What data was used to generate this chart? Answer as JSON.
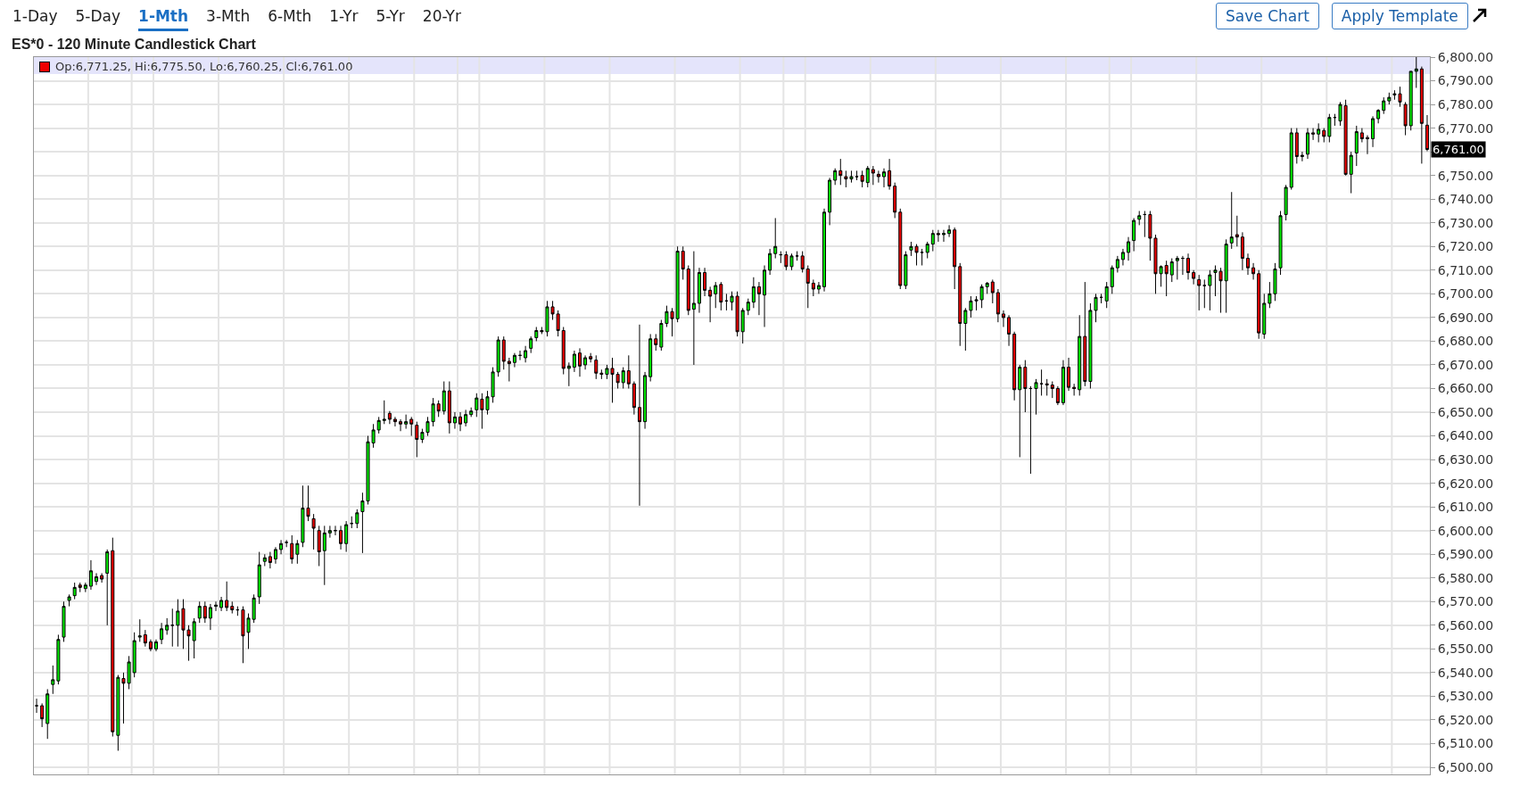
{
  "chart_data": {
    "type": "candlestick",
    "title": "ES*0 - 120 Minute Candlestick Chart",
    "annotations": [
      "1-Day",
      "5-Day",
      "1-Mth",
      "3-Mth",
      "6-Mth",
      "1-Yr",
      "5-Yr",
      "20-Yr",
      "Save Chart",
      "Apply Template",
      "Op:6,771.25, Hi:6,775.50, Lo:6,760.25, Cl:6,761.00",
      "6,761.00"
    ],
    "grid": "y",
    "legend": false,
    "tick_labels": "y",
    "ylim": [
      6497,
      6800
    ],
    "yticks": [
      {
        "value": 6500,
        "label": "6,500.00"
      },
      {
        "value": 6510,
        "label": "6,510.00"
      },
      {
        "value": 6520,
        "label": "6,520.00"
      },
      {
        "value": 6530,
        "label": "6,530.00"
      },
      {
        "value": 6540,
        "label": "6,540.00"
      },
      {
        "value": 6550,
        "label": "6,550.00"
      },
      {
        "value": 6560,
        "label": "6,560.00"
      },
      {
        "value": 6570,
        "label": "6,570.00"
      },
      {
        "value": 6580,
        "label": "6,580.00"
      },
      {
        "value": 6590,
        "label": "6,590.00"
      },
      {
        "value": 6600,
        "label": "6,600.00"
      },
      {
        "value": 6610,
        "label": "6,610.00"
      },
      {
        "value": 6620,
        "label": "6,620.00"
      },
      {
        "value": 6630,
        "label": "6,630.00"
      },
      {
        "value": 6640,
        "label": "6,640.00"
      },
      {
        "value": 6650,
        "label": "6,650.00"
      },
      {
        "value": 6660,
        "label": "6,660.00"
      },
      {
        "value": 6670,
        "label": "6,670.00"
      },
      {
        "value": 6680,
        "label": "6,680.00"
      },
      {
        "value": 6690,
        "label": "6,690.00"
      },
      {
        "value": 6700,
        "label": "6,700.00"
      },
      {
        "value": 6710,
        "label": "6,710.00"
      },
      {
        "value": 6720,
        "label": "6,720.00"
      },
      {
        "value": 6730,
        "label": "6,730.00"
      },
      {
        "value": 6740,
        "label": "6,740.00"
      },
      {
        "value": 6750,
        "label": "6,750.00"
      },
      {
        "value": 6760,
        "label": null
      },
      {
        "value": 6770,
        "label": "6,770.00"
      },
      {
        "value": 6780,
        "label": "6,780.00"
      },
      {
        "value": 6790,
        "label": "6,790.00"
      },
      {
        "value": 6800,
        "label": "6,800.00"
      }
    ],
    "categories": [
      null,
      null,
      null,
      null,
      null,
      null,
      null,
      null,
      null,
      null,
      null,
      null,
      null,
      null,
      null,
      null,
      null,
      null,
      null,
      null,
      null,
      null,
      null,
      null,
      null,
      null,
      null,
      null,
      null,
      null,
      null,
      null,
      null,
      null,
      null,
      null,
      null,
      null,
      null,
      null,
      null,
      null,
      null,
      null,
      null,
      null,
      null,
      null,
      null,
      null,
      null,
      null,
      null,
      null,
      null,
      null,
      null,
      null,
      null,
      null,
      null,
      null,
      null,
      null,
      null,
      null,
      null,
      null,
      null,
      null,
      null,
      null,
      null,
      null,
      null,
      null,
      null,
      null,
      null,
      null,
      null,
      null,
      null,
      null,
      null,
      null,
      null,
      null,
      null,
      null,
      null,
      null,
      null,
      null,
      null,
      null,
      null,
      null,
      null,
      null,
      null,
      null,
      null,
      null,
      null,
      null,
      null,
      null,
      null,
      null,
      null,
      null,
      null,
      null,
      null,
      null,
      null,
      null,
      null,
      null,
      null,
      null,
      null,
      null,
      null,
      null,
      null,
      null,
      null,
      null,
      null,
      null,
      null,
      null,
      null,
      null,
      null,
      null,
      null,
      null,
      null,
      null,
      null,
      null,
      null,
      null,
      null,
      null,
      null,
      null,
      null,
      null,
      null,
      null,
      null,
      null,
      null,
      null,
      null,
      null,
      null,
      null,
      null,
      null,
      null,
      null,
      null,
      null,
      null,
      null,
      null,
      null,
      null,
      null,
      null,
      null,
      null,
      null,
      null,
      null,
      null,
      null,
      null,
      null,
      null,
      null,
      null,
      null,
      null,
      null,
      null,
      null,
      null,
      null,
      null,
      null,
      null,
      null,
      null,
      null,
      null,
      null,
      null,
      null,
      null,
      null,
      null,
      null,
      null,
      null,
      null,
      null,
      null,
      null,
      null,
      null,
      null,
      null,
      null,
      null,
      null,
      null,
      null,
      null,
      null,
      null,
      null,
      null,
      null,
      null,
      null,
      null,
      null,
      null,
      null,
      null,
      null,
      null,
      null,
      null,
      null,
      null,
      null,
      null,
      null,
      null,
      null,
      null,
      null,
      null,
      null,
      null,
      null,
      null,
      null,
      null,
      null
    ],
    "ohlc": [
      [
        6526,
        6529,
        6523,
        6526
      ],
      [
        6526,
        6527,
        6517,
        6520.5
      ],
      [
        6518.5,
        6533,
        6512,
        6531
      ],
      [
        6535,
        6543,
        6531,
        6537
      ],
      [
        6536.5,
        6556,
        6535,
        6554
      ],
      [
        6555,
        6570,
        6553,
        6568
      ],
      [
        6570.5,
        6573,
        6568,
        6572
      ],
      [
        6572.5,
        6578,
        6571,
        6576
      ],
      [
        6577,
        6578,
        6574,
        6576
      ],
      [
        6575.5,
        6578,
        6574,
        6577
      ],
      [
        6576.5,
        6587.5,
        6575,
        6583
      ],
      [
        6578.5,
        6582,
        6577,
        6580.5
      ],
      [
        6581,
        6582,
        6578,
        6579.5
      ],
      [
        6582,
        6592,
        6560,
        6591
      ],
      [
        6591.5,
        6597,
        6513,
        6515
      ],
      [
        6513.5,
        6539,
        6507,
        6538
      ],
      [
        6537.5,
        6540,
        6518.5,
        6535.5
      ],
      [
        6535.5,
        6547,
        6533,
        6544.5
      ],
      [
        6540,
        6557,
        6538,
        6553.5
      ],
      [
        6555,
        6562.5,
        6553,
        6555.5
      ],
      [
        6556,
        6558,
        6551,
        6552.5
      ],
      [
        6553,
        6554,
        6549,
        6550
      ],
      [
        6550,
        6554,
        6549,
        6553
      ],
      [
        6554,
        6561,
        6552,
        6558.5
      ],
      [
        6558,
        6563,
        6556,
        6560
      ],
      [
        6560,
        6567,
        6551,
        6560
      ],
      [
        6560,
        6571,
        6551,
        6566
      ],
      [
        6567,
        6571,
        6550,
        6558
      ],
      [
        6558,
        6560,
        6545,
        6555.5
      ],
      [
        6553.5,
        6563,
        6546,
        6561.5
      ],
      [
        6563,
        6570,
        6561,
        6568
      ],
      [
        6568,
        6570,
        6561,
        6563
      ],
      [
        6563,
        6569,
        6558,
        6567.5
      ],
      [
        6568,
        6570,
        6566,
        6568.5
      ],
      [
        6567.5,
        6572,
        6566,
        6570.5
      ],
      [
        6570.5,
        6578.5,
        6566,
        6567.5
      ],
      [
        6568,
        6570,
        6565,
        6566.5
      ],
      [
        6566.5,
        6568,
        6564,
        6566.5
      ],
      [
        6566.5,
        6568,
        6544,
        6555.5
      ],
      [
        6557,
        6565,
        6550,
        6563
      ],
      [
        6562.5,
        6573,
        6561,
        6571.5
      ],
      [
        6572,
        6591,
        6569,
        6585.5
      ],
      [
        6587,
        6590,
        6585,
        6588.5
      ],
      [
        6589,
        6591,
        6584,
        6586.5
      ],
      [
        6588,
        6593,
        6586,
        6592
      ],
      [
        6592,
        6596,
        6590,
        6594.5
      ],
      [
        6595,
        6596,
        6593,
        6595
      ],
      [
        6594.5,
        6598,
        6586,
        6588
      ],
      [
        6590,
        6596,
        6586,
        6594.5
      ],
      [
        6595,
        6619,
        6593,
        6609.5
      ],
      [
        6609.5,
        6619,
        6604,
        6606
      ],
      [
        6605,
        6607,
        6592,
        6601
      ],
      [
        6600,
        6602,
        6585,
        6591
      ],
      [
        6591.5,
        6602,
        6577,
        6599
      ],
      [
        6599,
        6602,
        6597,
        6600
      ],
      [
        6600,
        6602,
        6598,
        6600
      ],
      [
        6600,
        6602,
        6592,
        6594.5
      ],
      [
        6594.5,
        6604,
        6591,
        6602.5
      ],
      [
        6603,
        6606,
        6601,
        6603
      ],
      [
        6603,
        6609,
        6601,
        6607.5
      ],
      [
        6608,
        6616,
        6590.5,
        6612.5
      ],
      [
        6612.5,
        6640,
        6611,
        6637.5
      ],
      [
        6637,
        6645,
        6635,
        6642.5
      ],
      [
        6642.5,
        6648,
        6641,
        6646.5
      ],
      [
        6646.5,
        6655,
        6645,
        6647
      ],
      [
        6649.5,
        6650.5,
        6645,
        6647
      ],
      [
        6647,
        6648,
        6644,
        6646
      ],
      [
        6646,
        6647,
        6642,
        6645
      ],
      [
        6645,
        6649,
        6643,
        6646
      ],
      [
        6647,
        6648,
        6640,
        6645
      ],
      [
        6644.5,
        6646,
        6631,
        6638.5
      ],
      [
        6638.5,
        6643,
        6637,
        6641.5
      ],
      [
        6641.5,
        6648,
        6640,
        6646
      ],
      [
        6646,
        6656,
        6644,
        6653.5
      ],
      [
        6653.5,
        6655,
        6648,
        6650.5
      ],
      [
        6650.5,
        6663,
        6649,
        6659
      ],
      [
        6659,
        6663,
        6641,
        6645.5
      ],
      [
        6645.5,
        6650,
        6643,
        6648
      ],
      [
        6648,
        6650,
        6642,
        6645
      ],
      [
        6645.5,
        6651,
        6644,
        6649
      ],
      [
        6649,
        6652,
        6648,
        6650.5
      ],
      [
        6651,
        6658,
        6648,
        6656
      ],
      [
        6655.5,
        6658,
        6643,
        6651
      ],
      [
        6651,
        6659,
        6649,
        6656.5
      ],
      [
        6656.5,
        6669,
        6654,
        6667
      ],
      [
        6667,
        6682,
        6665,
        6680.5
      ],
      [
        6680.5,
        6682,
        6668,
        6671.5
      ],
      [
        6671.5,
        6673,
        6663,
        6670.5
      ],
      [
        6671,
        6675,
        6669,
        6674
      ],
      [
        6674,
        6676,
        6672,
        6674
      ],
      [
        6673,
        6678,
        6671,
        6676
      ],
      [
        6677,
        6682,
        6675,
        6681
      ],
      [
        6681.5,
        6686,
        6680,
        6684.5
      ],
      [
        6684.5,
        6686,
        6683,
        6684
      ],
      [
        6684,
        6697,
        6682,
        6694.5
      ],
      [
        6694.5,
        6697,
        6689,
        6691.5
      ],
      [
        6691.5,
        6693,
        6682,
        6684.5
      ],
      [
        6684.5,
        6686,
        6666,
        6668.5
      ],
      [
        6668.5,
        6671,
        6661,
        6669.5
      ],
      [
        6669,
        6676,
        6667,
        6674.5
      ],
      [
        6675,
        6677,
        6665,
        6669.5
      ],
      [
        6670,
        6674,
        6668,
        6673
      ],
      [
        6673.5,
        6675,
        6671,
        6672.5
      ],
      [
        6672,
        6674,
        6664,
        6666.5
      ],
      [
        6666.5,
        6668,
        6664,
        6666
      ],
      [
        6666,
        6670,
        6664,
        6668.5
      ],
      [
        6668.5,
        6673,
        6654,
        6666
      ],
      [
        6666,
        6667,
        6660,
        6662.5
      ],
      [
        6662.5,
        6669,
        6660,
        6667.5
      ],
      [
        6667.5,
        6674,
        6660,
        6662
      ],
      [
        6662,
        6663,
        6649,
        6652
      ],
      [
        6652,
        6687,
        6610.5,
        6646
      ],
      [
        6646,
        6667,
        6643,
        6665.5
      ],
      [
        6665,
        6683,
        6663,
        6681
      ],
      [
        6681,
        6683,
        6676,
        6678.5
      ],
      [
        6677.5,
        6689,
        6676,
        6687.5
      ],
      [
        6687.5,
        6695,
        6686,
        6692.5
      ],
      [
        6692.5,
        6694,
        6682,
        6689.5
      ],
      [
        6689.5,
        6720,
        6688,
        6718
      ],
      [
        6718,
        6720,
        6706,
        6710.5
      ],
      [
        6710.5,
        6712,
        6691,
        6693
      ],
      [
        6693.5,
        6718,
        6670,
        6696
      ],
      [
        6696,
        6711,
        6692,
        6709
      ],
      [
        6709,
        6711,
        6699,
        6701.5
      ],
      [
        6701.5,
        6703,
        6688,
        6699
      ],
      [
        6700,
        6705,
        6694,
        6703.5
      ],
      [
        6704,
        6705,
        6693,
        6696.5
      ],
      [
        6697,
        6700,
        6693,
        6697
      ],
      [
        6696.5,
        6701,
        6693,
        6699
      ],
      [
        6699,
        6701,
        6682,
        6684
      ],
      [
        6684,
        6694,
        6679,
        6693
      ],
      [
        6693,
        6698,
        6691,
        6696.5
      ],
      [
        6696.5,
        6707,
        6694,
        6703
      ],
      [
        6703,
        6705,
        6691,
        6700
      ],
      [
        6699.5,
        6712,
        6686,
        6710
      ],
      [
        6710,
        6719,
        6708,
        6717
      ],
      [
        6717,
        6732,
        6715,
        6720
      ],
      [
        6716.5,
        6718,
        6713,
        6716.5
      ],
      [
        6716.5,
        6718,
        6710,
        6711.5
      ],
      [
        6711.5,
        6717,
        6710,
        6716
      ],
      [
        6716,
        6718,
        6714,
        6716
      ],
      [
        6716,
        6718,
        6709,
        6710.5
      ],
      [
        6710.5,
        6712,
        6694,
        6704.5
      ],
      [
        6704.5,
        6706,
        6699,
        6702
      ],
      [
        6702,
        6705,
        6700,
        6703.5
      ],
      [
        6703,
        6736,
        6701,
        6734.5
      ],
      [
        6734.5,
        6749,
        6729,
        6748
      ],
      [
        6748,
        6753,
        6746,
        6752
      ],
      [
        6752,
        6757,
        6746,
        6750
      ],
      [
        6749.5,
        6752,
        6745,
        6748.5
      ],
      [
        6748.5,
        6752,
        6747,
        6749.5
      ],
      [
        6749.5,
        6752,
        6748,
        6749.5
      ],
      [
        6750,
        6752,
        6745,
        6747.5
      ],
      [
        6747,
        6754,
        6745,
        6753
      ],
      [
        6752.5,
        6754,
        6746,
        6751
      ],
      [
        6750.5,
        6752,
        6747,
        6749.5
      ],
      [
        6749.5,
        6753,
        6745,
        6751.5
      ],
      [
        6752,
        6757,
        6744,
        6745.5
      ],
      [
        6745.5,
        6747,
        6732,
        6734.5
      ],
      [
        6734.5,
        6736,
        6702,
        6703.5
      ],
      [
        6703.5,
        6718,
        6702,
        6716.5
      ],
      [
        6718.5,
        6722,
        6716,
        6720
      ],
      [
        6720,
        6721,
        6712,
        6717.5
      ],
      [
        6717.5,
        6719,
        6712,
        6717.5
      ],
      [
        6717.5,
        6722,
        6715,
        6721
      ],
      [
        6721,
        6727,
        6718,
        6725.5
      ],
      [
        6725.5,
        6727,
        6722,
        6725
      ],
      [
        6725,
        6727,
        6722,
        6725.5
      ],
      [
        6725.5,
        6729,
        6724,
        6727
      ],
      [
        6727,
        6728,
        6702,
        6711.5
      ],
      [
        6711.5,
        6713,
        6678,
        6687.5
      ],
      [
        6687.5,
        6694,
        6676,
        6693
      ],
      [
        6693,
        6699,
        6690,
        6697
      ],
      [
        6697,
        6699,
        6693,
        6697.5
      ],
      [
        6697.5,
        6704,
        6694,
        6703
      ],
      [
        6703,
        6705,
        6700,
        6704.5
      ],
      [
        6705,
        6706,
        6696,
        6700.5
      ],
      [
        6700.5,
        6702,
        6688,
        6691.5
      ],
      [
        6691.5,
        6693,
        6686,
        6690
      ],
      [
        6690,
        6691,
        6678,
        6683
      ],
      [
        6683,
        6684,
        6655,
        6659.5
      ],
      [
        6659.5,
        6670,
        6631,
        6669
      ],
      [
        6669,
        6672,
        6650,
        6660
      ],
      [
        6660,
        6661,
        6624,
        6660
      ],
      [
        6660,
        6664,
        6649,
        6662.5
      ],
      [
        6662,
        6668,
        6657,
        6662
      ],
      [
        6662,
        6664,
        6657,
        6661.5
      ],
      [
        6661.5,
        6663,
        6656,
        6660
      ],
      [
        6660,
        6661,
        6653,
        6654
      ],
      [
        6654,
        6672,
        6653,
        6669
      ],
      [
        6669,
        6673,
        6659,
        6660.5
      ],
      [
        6660.5,
        6662,
        6657,
        6660
      ],
      [
        6659.5,
        6691,
        6657,
        6682
      ],
      [
        6682,
        6705,
        6661,
        6663
      ],
      [
        6663,
        6696,
        6660,
        6693
      ],
      [
        6693,
        6700,
        6688,
        6698.5
      ],
      [
        6698.5,
        6700,
        6696,
        6698.5
      ],
      [
        6697,
        6705,
        6694,
        6703
      ],
      [
        6703,
        6712,
        6700,
        6711
      ],
      [
        6711,
        6716,
        6709,
        6714.5
      ],
      [
        6714.5,
        6719,
        6712,
        6717.5
      ],
      [
        6717.5,
        6724,
        6714,
        6722
      ],
      [
        6722.5,
        6732,
        6718,
        6731
      ],
      [
        6731.5,
        6735,
        6729,
        6733
      ],
      [
        6733.5,
        6735,
        6724,
        6733.5
      ],
      [
        6733.5,
        6735,
        6714,
        6723.5
      ],
      [
        6723.5,
        6725,
        6700,
        6708.5
      ],
      [
        6708.5,
        6712,
        6703,
        6711.5
      ],
      [
        6712,
        6714,
        6699,
        6708.5
      ],
      [
        6708,
        6715,
        6705,
        6713.5
      ],
      [
        6714,
        6716,
        6706,
        6715
      ],
      [
        6715,
        6716,
        6708,
        6715
      ],
      [
        6715,
        6717,
        6706,
        6709
      ],
      [
        6709,
        6710,
        6704,
        6706.5
      ],
      [
        6706,
        6708,
        6693,
        6703.5
      ],
      [
        6703.5,
        6706,
        6694,
        6703.5
      ],
      [
        6703.5,
        6710,
        6693,
        6708
      ],
      [
        6709,
        6712,
        6699,
        6710
      ],
      [
        6709.5,
        6711,
        6692,
        6705.5
      ],
      [
        6705.5,
        6723,
        6692,
        6721
      ],
      [
        6721.5,
        6743,
        6719,
        6724
      ],
      [
        6725,
        6733,
        6720,
        6724
      ],
      [
        6724,
        6726,
        6710,
        6715
      ],
      [
        6715,
        6717,
        6708,
        6711
      ],
      [
        6711,
        6713,
        6706,
        6708.5
      ],
      [
        6708.5,
        6710,
        6681,
        6683.5
      ],
      [
        6683,
        6700,
        6681,
        6696
      ],
      [
        6696,
        6705,
        6694,
        6700
      ],
      [
        6700,
        6713,
        6697,
        6710.5
      ],
      [
        6711,
        6735,
        6708,
        6733
      ],
      [
        6733.5,
        6746,
        6731,
        6745
      ],
      [
        6745,
        6770,
        6744,
        6768
      ],
      [
        6768,
        6770,
        6755,
        6758
      ],
      [
        6758,
        6760,
        6756,
        6758.5
      ],
      [
        6759,
        6770,
        6757,
        6768
      ],
      [
        6768,
        6770,
        6765,
        6767.5
      ],
      [
        6767.5,
        6772,
        6764,
        6769.5
      ],
      [
        6769,
        6770,
        6764,
        6766.5
      ],
      [
        6766.5,
        6776,
        6764,
        6774.5
      ],
      [
        6774.5,
        6776,
        6771,
        6774.5
      ],
      [
        6773,
        6781,
        6771,
        6780
      ],
      [
        6779.5,
        6782,
        6750,
        6750.5
      ],
      [
        6750.5,
        6760,
        6742.5,
        6758.5
      ],
      [
        6759.5,
        6771,
        6754,
        6768.5
      ],
      [
        6768,
        6770,
        6764,
        6765.5
      ],
      [
        6766,
        6767,
        6759,
        6765.5
      ],
      [
        6765.5,
        6775,
        6762,
        6774
      ],
      [
        6774,
        6778,
        6772,
        6777.5
      ],
      [
        6777.5,
        6783,
        6776,
        6781.5
      ],
      [
        6781.5,
        6785,
        6780,
        6783
      ],
      [
        6784,
        6786,
        6782,
        6784.5
      ],
      [
        6784.5,
        6787.5,
        6779,
        6781
      ],
      [
        6780,
        6781,
        6767,
        6771
      ],
      [
        6771,
        6794,
        6769,
        6794
      ],
      [
        6794,
        6800,
        6787,
        6795
      ],
      [
        6795,
        6796,
        6755,
        6772
      ],
      [
        6771.25,
        6775.5,
        6760.25,
        6761
      ]
    ]
  }
}
